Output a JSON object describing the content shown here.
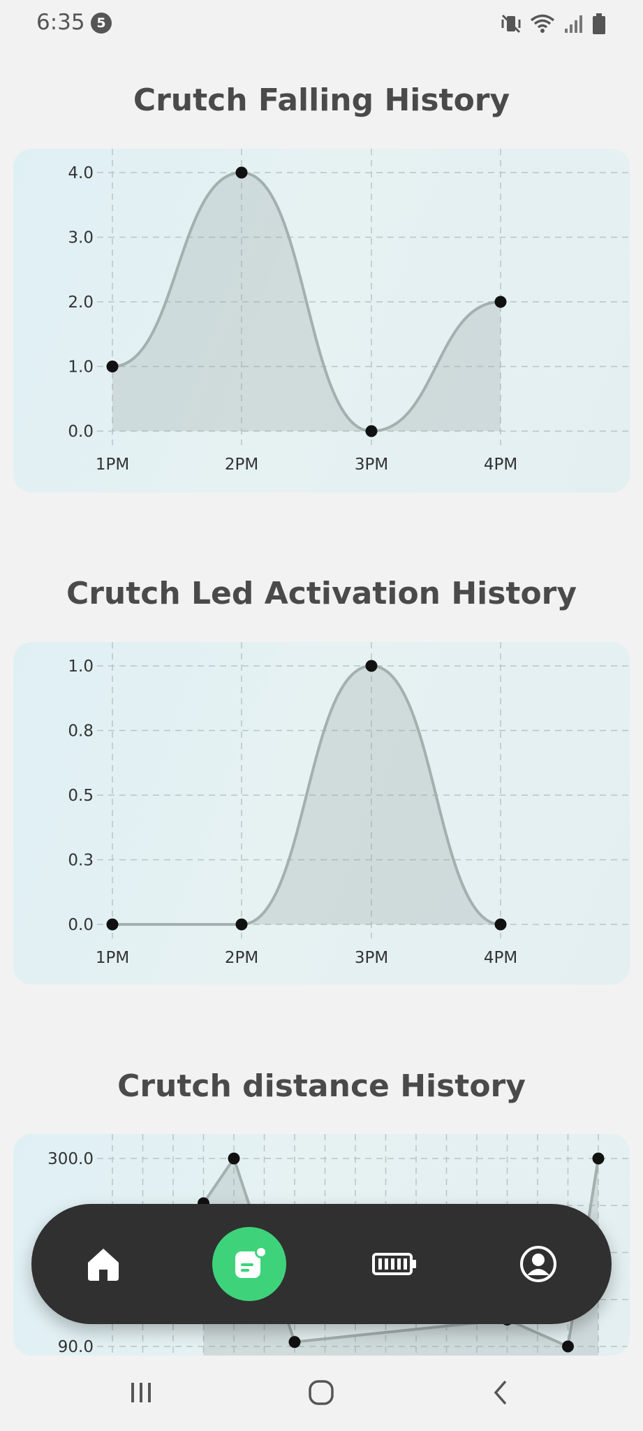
{
  "status_bar": {
    "time": "6:35",
    "notification_count": "5",
    "icons": [
      "vibrate-off-icon",
      "wifi-icon",
      "signal-icon",
      "battery-icon"
    ]
  },
  "charts": {
    "falling": {
      "title": "Crutch Falling History"
    },
    "led": {
      "title": "Crutch Led Activation History"
    },
    "distance": {
      "title": "Crutch distance History"
    }
  },
  "chart_data": [
    {
      "type": "line",
      "title": "Crutch Falling History",
      "categories": [
        "1PM",
        "2PM",
        "3PM",
        "4PM"
      ],
      "values": [
        1.0,
        4.0,
        0.0,
        2.0
      ],
      "y_ticks": [
        "0.0",
        "1.0",
        "2.0",
        "3.0",
        "4.0"
      ],
      "ylim": [
        0,
        4
      ],
      "grid": true,
      "area_fill": true
    },
    {
      "type": "line",
      "title": "Crutch Led Activation History",
      "categories": [
        "1PM",
        "2PM",
        "3PM",
        "4PM"
      ],
      "values": [
        0.0,
        0.0,
        1.0,
        0.0
      ],
      "y_ticks": [
        "0.0",
        "0.3",
        "0.5",
        "0.8",
        "1.0"
      ],
      "ylim": [
        0,
        1
      ],
      "grid": true,
      "area_fill": true
    },
    {
      "type": "line",
      "title": "Crutch distance History",
      "y_ticks_visible": [
        "300.0",
        "90.0"
      ],
      "ylim": [
        90,
        300
      ],
      "values": [
        null,
        null,
        null,
        250,
        300,
        null,
        95,
        null,
        null,
        null,
        null,
        null,
        null,
        120,
        null,
        90,
        300
      ],
      "grid": true,
      "area_fill": true
    }
  ],
  "bottom_nav": {
    "items": [
      {
        "name": "home",
        "icon": "home-icon"
      },
      {
        "name": "history",
        "icon": "history-icon",
        "active": true
      },
      {
        "name": "battery",
        "icon": "battery-icon"
      },
      {
        "name": "profile",
        "icon": "profile-icon"
      }
    ]
  },
  "system_nav": [
    "recent-apps-icon",
    "home-circle-icon",
    "back-icon"
  ]
}
